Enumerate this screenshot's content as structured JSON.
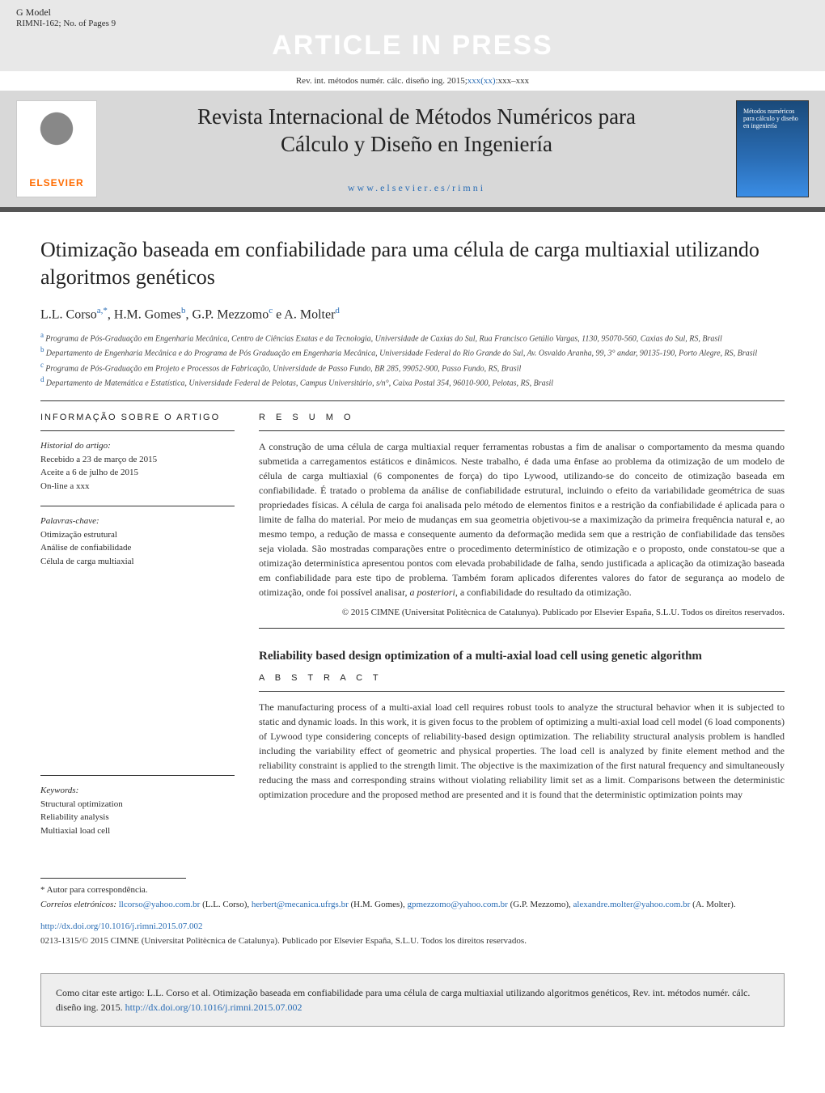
{
  "header": {
    "gmodel_label": "G Model",
    "gmodel_id": "RIMNI-162;   No. of Pages 9",
    "aip_banner": "ARTICLE IN PRESS",
    "citation_prefix": "Rev. int. métodos numér. cálc. diseño ing. 2015;",
    "citation_vol": "xxx(xx)",
    "citation_pages": ":xxx–xxx"
  },
  "journal": {
    "title_line1": "Revista Internacional de Métodos Numéricos para",
    "title_line2": "Cálculo y Diseño en Ingeniería",
    "link": "www.elsevier.es/rimni",
    "publisher_logo_text": "ELSEVIER",
    "cover_text": "Métodos numéricos para cálculo y diseño en ingeniería"
  },
  "article": {
    "title": "Otimização baseada em confiabilidade para uma célula de carga multiaxial utilizando algoritmos genéticos",
    "authors_html": "L.L. Corso|a,*|,  H.M. Gomes|b|,  G.P. Mezzomo|c| e A. Molter|d|",
    "affiliations": [
      {
        "sup": "a",
        "text": "Programa de Pós-Graduação em Engenharia Mecânica, Centro de Ciências Exatas e da Tecnologia, Universidade de Caxias do Sul, Rua Francisco Getúlio Vargas, 1130, 95070-560, Caxias do Sul, RS, Brasil"
      },
      {
        "sup": "b",
        "text": "Departamento de Engenharia Mecânica e do Programa de Pós Graduação em Engenharia Mecânica, Universidade Federal do Rio Grande do Sul, Av. Osvaldo Aranha, 99, 3° andar, 90135-190, Porto Alegre, RS, Brasil"
      },
      {
        "sup": "c",
        "text": "Programa de Pós-Graduação em Projeto e Processos de Fabricação, Universidade de Passo Fundo, BR 285, 99052-900, Passo Fundo, RS, Brasil"
      },
      {
        "sup": "d",
        "text": "Departamento de Matemática e Estatística, Universidade Federal de Pelotas, Campus Universitário, s/n°, Caixa Postal 354, 96010-900, Pelotas, RS, Brasil"
      }
    ]
  },
  "info": {
    "heading": "INFORMAÇÃO SOBRE O ARTIGO",
    "history_label": "Historial do artigo:",
    "received": "Recebido a 23 de março de 2015",
    "accepted": "Aceite a 6 de julho de 2015",
    "online": "On-line a xxx",
    "keywords_pt_label": "Palavras-chave:",
    "keywords_pt": [
      "Otimização estrutural",
      "Análise de confiabilidade",
      "Célula de carga multiaxial"
    ],
    "keywords_en_label": "Keywords:",
    "keywords_en": [
      "Structural optimization",
      "Reliability analysis",
      "Multiaxial load cell"
    ]
  },
  "resumo": {
    "heading": "R E S U M O",
    "text": "A construção de uma célula de carga multiaxial requer ferramentas robustas a fim de analisar o comportamento da mesma quando submetida a carregamentos estáticos e dinâmicos. Neste trabalho, é dada uma ênfase ao problema da otimização de um modelo de célula de carga multiaxial (6 componentes de força) do tipo Lywood, utilizando-se do conceito de otimização baseada em confiabilidade. É tratado o problema da análise de confiabilidade estrutural, incluindo o efeito da variabilidade geométrica de suas propriedades físicas. A célula de carga foi analisada pelo método de elementos finitos e a restrição da confiabilidade é aplicada para o limite de falha do material. Por meio de mudanças em sua geometria objetivou-se a maximização da primeira frequência natural e, ao mesmo tempo, a redução de massa e consequente aumento da deformação medida sem que a restrição de confiabilidade das tensões seja violada. São mostradas comparações entre o procedimento determinístico de otimização e o proposto, onde constatou-se que a otimização determinística apresentou pontos com elevada probabilidade de falha, sendo justificada a aplicação da otimização baseada em confiabilidade para este tipo de problema. Também foram aplicados diferentes valores do fator de segurança ao modelo de otimização, onde foi possível analisar, ",
    "text_italic": "a posteriori",
    "text_tail": ", a confiabilidade do resultado da otimização.",
    "copyright": "© 2015 CIMNE (Universitat Politècnica de Catalunya). Publicado por Elsevier España, S.L.U. Todos os direitos reservados."
  },
  "abstract": {
    "en_title": "Reliability based design optimization of a multi-axial load cell using genetic algorithm",
    "heading": "A B S T R A C T",
    "text": "The manufacturing process of a multi-axial load cell requires robust tools to analyze the structural behavior when it is subjected to static and dynamic loads. In this work, it is given focus to the problem of optimizing a multi-axial load cell model (6 load components) of Lywood type considering concepts of reliability-based design optimization. The reliability structural analysis problem is handled including the variability effect of geometric and physical properties. The load cell is analyzed by finite element method and the reliability constraint is applied to the strength limit. The objective is the maximization of the first natural frequency and simultaneously reducing the mass and corresponding strains without violating reliability limit set as a limit. Comparisons between the deterministic optimization procedure and the proposed method are presented and it is found that the deterministic optimization points may"
  },
  "footer": {
    "corresp_marker": "*  Autor para correspondência.",
    "emails_label": "Correios eletrónicos:",
    "emails": [
      {
        "email": "llcorso@yahoo.com.br",
        "author": "(L.L. Corso)"
      },
      {
        "email": "herbert@mecanica.ufrgs.br",
        "author": "(H.M. Gomes)"
      },
      {
        "email": "gpmezzomo@yahoo.com.br",
        "author": "(G.P. Mezzomo)"
      },
      {
        "email": "alexandre.molter@yahoo.com.br",
        "author": "(A. Molter)"
      }
    ],
    "doi": "http://dx.doi.org/10.1016/j.rimni.2015.07.002",
    "issn_line": "0213-1315/© 2015 CIMNE (Universitat Politècnica de Catalunya). Publicado por Elsevier España, S.L.U. Todos los direitos reservados."
  },
  "citebox": {
    "text_pre": "Como citar este artigo: L.L. Corso et al. Otimização baseada em confiabilidade para uma célula de carga multiaxial utilizando algoritmos genéticos, Rev. int. métodos numér. cálc. diseño ing. 2015. ",
    "doi": "http://dx.doi.org/10.1016/j.rimni.2015.07.002"
  },
  "colors": {
    "header_bg": "#e8e8e8",
    "journal_bg": "#d8d8d8",
    "link_blue": "#2a6db5",
    "elsevier_orange": "#ff6b00",
    "divider": "#555555",
    "citebox_bg": "#eeeeee"
  }
}
